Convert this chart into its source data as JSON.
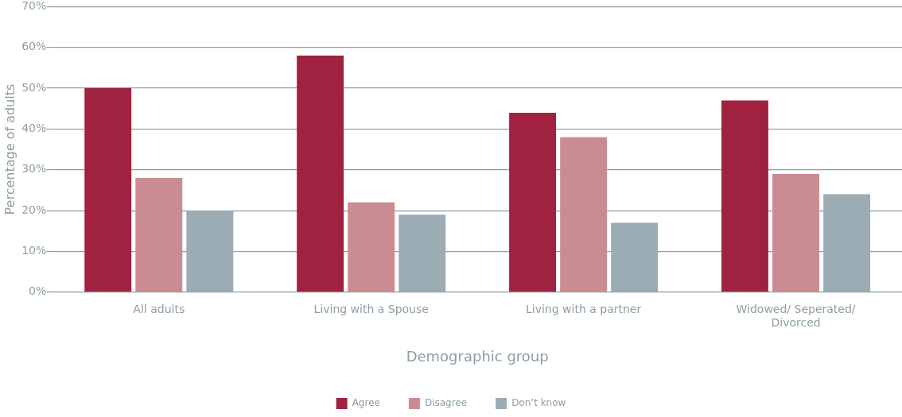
{
  "chart_data": {
    "type": "bar",
    "xlabel": "Demographic group",
    "ylabel": "Percentage of adults",
    "categories": [
      "All adults",
      "Living with a Spouse",
      "Living with a partner",
      "Widowed/ Seperated/ Divorced"
    ],
    "series": [
      {
        "name": "Agree",
        "color": "#a12240",
        "values": [
          50,
          58,
          44,
          47
        ]
      },
      {
        "name": "Disagree",
        "color": "#cb8c91",
        "values": [
          28,
          22,
          38,
          29
        ]
      },
      {
        "name": "Don’t know",
        "color": "#9cacb5",
        "values": [
          20,
          19,
          17,
          24
        ]
      }
    ],
    "ylim": [
      0,
      70
    ],
    "yticks": [
      {
        "value": 0,
        "label": "0%"
      },
      {
        "value": 10,
        "label": "10%"
      },
      {
        "value": 20,
        "label": "20%"
      },
      {
        "value": 30,
        "label": "30%"
      },
      {
        "value": 40,
        "label": "40%"
      },
      {
        "value": 50,
        "label": "50%"
      },
      {
        "value": 60,
        "label": "60%"
      },
      {
        "value": 70,
        "label": "70%"
      }
    ],
    "grid": "y",
    "legend": "bottom"
  }
}
